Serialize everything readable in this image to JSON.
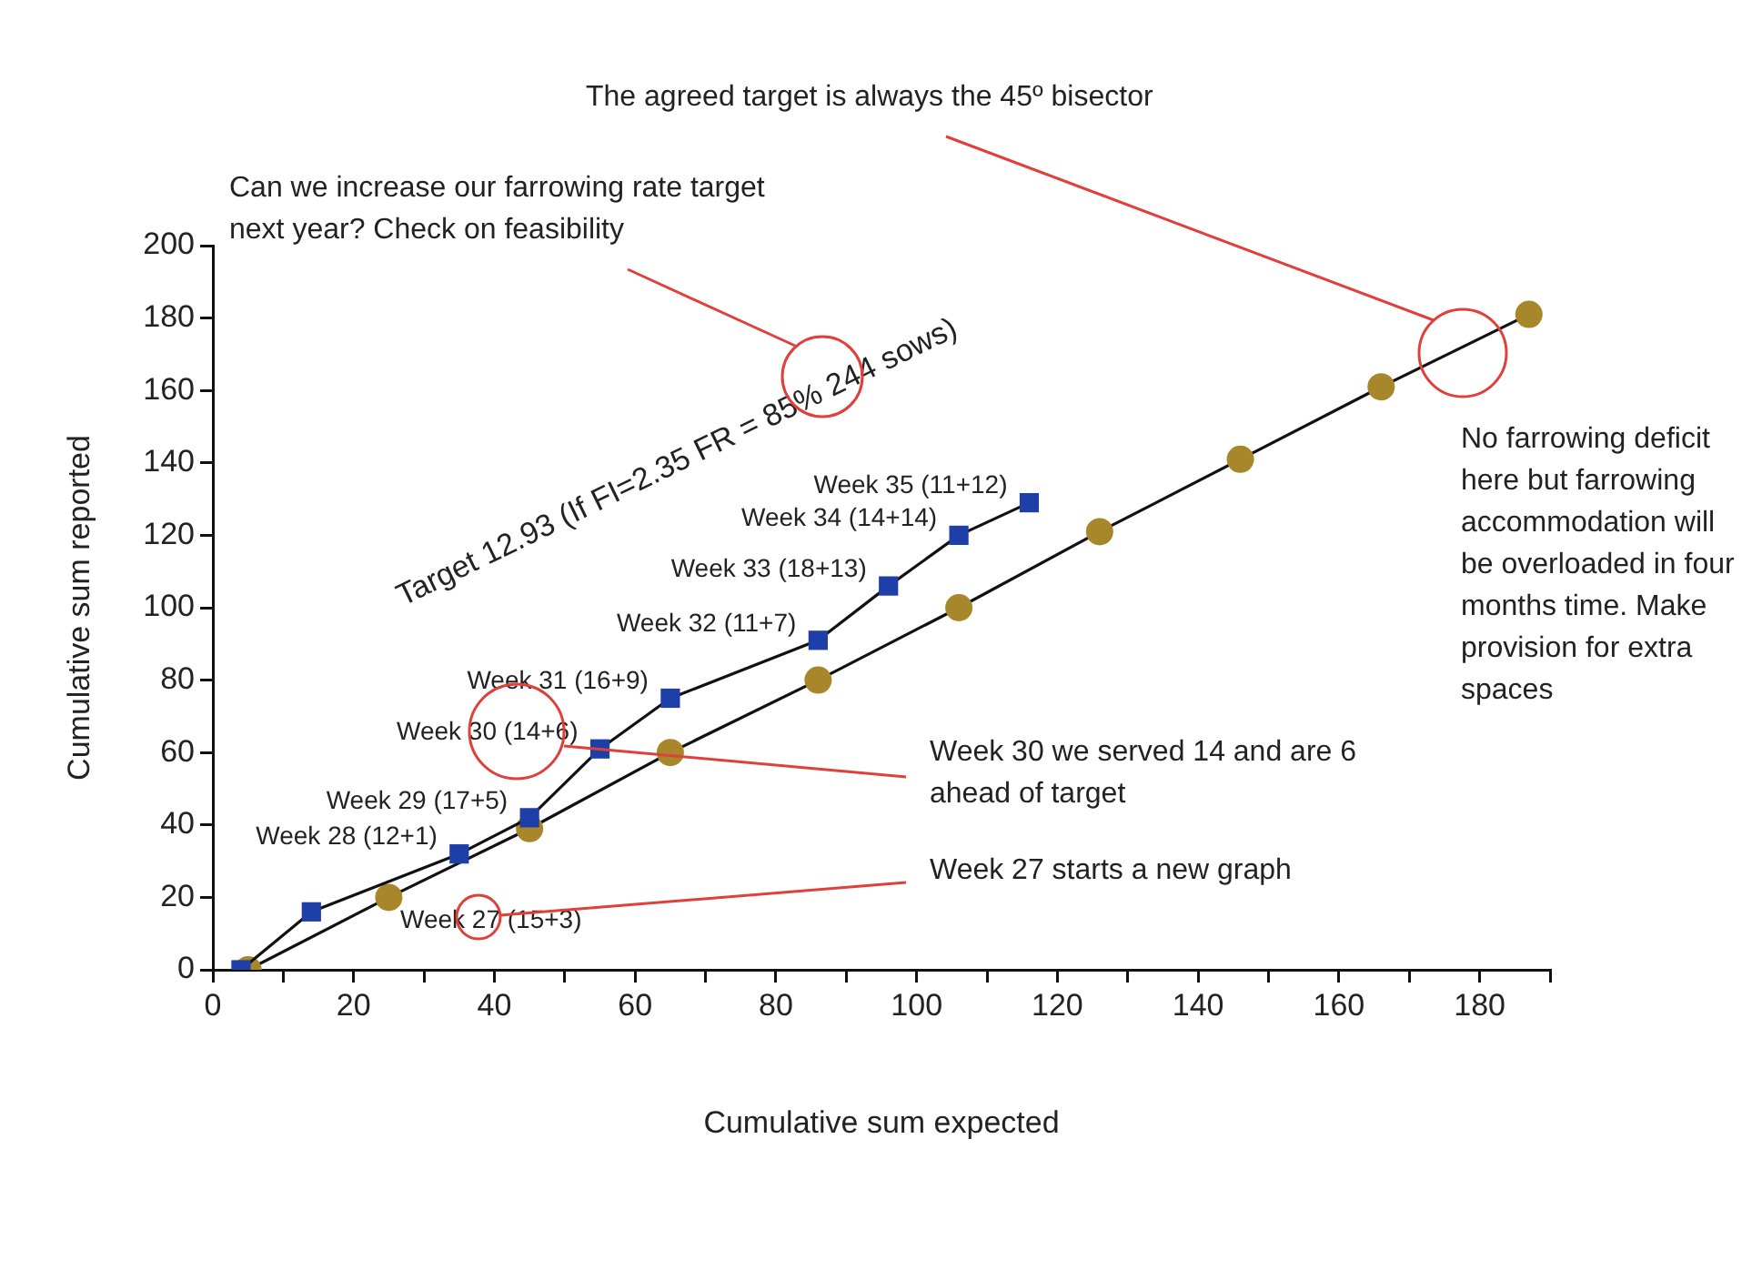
{
  "chart_data": {
    "type": "line",
    "xlabel": "Cumulative sum expected",
    "ylabel": "Cumulative sum reported",
    "xlim": [
      0,
      190
    ],
    "xticks": [
      0,
      {
        "value": 10,
        "label": null
      },
      20,
      {
        "value": 30,
        "label": null
      },
      40,
      {
        "value": 50,
        "label": null
      },
      60,
      {
        "value": 70,
        "label": null
      },
      80,
      {
        "value": 90,
        "label": null
      },
      100,
      {
        "value": 110,
        "label": null
      },
      120,
      {
        "value": 130,
        "label": null
      },
      140,
      {
        "value": 150,
        "label": null
      },
      160,
      {
        "value": 170,
        "label": null
      },
      180,
      {
        "value": 190,
        "label": null
      }
    ],
    "ylim": [
      0,
      200
    ],
    "yticks": [
      0,
      20,
      40,
      60,
      80,
      100,
      120,
      140,
      160,
      180,
      200
    ],
    "grid": false,
    "legend": false,
    "line_style": "solid",
    "series": [
      {
        "color": "#1f3fa8",
        "marker": "square",
        "x": [
          4,
          14,
          35,
          45,
          55,
          65,
          86,
          96,
          106,
          116
        ],
        "values": [
          0,
          16,
          32,
          42,
          61,
          75,
          91,
          106,
          120,
          129
        ]
      },
      {
        "color": "#a8862a",
        "marker": "circle",
        "x": [
          5,
          25,
          45,
          65,
          86,
          106,
          126,
          146,
          166,
          187
        ],
        "values": [
          0,
          20,
          39,
          60,
          80,
          100,
          121,
          141,
          161,
          181
        ]
      }
    ],
    "annotations": [
      "The agreed target is always the 45º bisector",
      "Can we increase our farrowing rate target next year? Check on feasibility",
      "Target 12.93 (If FI=2.35 FR = 85% 244 sows)",
      "Week 30 we served 14 and are 6 ahead of target",
      "Week 27 starts a new graph",
      "No farrowing deficit here but farrowing accommodation will be overloaded in four months time. Make provision for extra spaces",
      "Week 27 (15+3)",
      {
        "text": "Week 28 (12+1)",
        "x": 35,
        "y": 32
      },
      {
        "text": "Week 29 (17+5)",
        "x": 45,
        "y": 42
      },
      {
        "text": "Week 30 (14+6)",
        "x": 55,
        "y": 61
      },
      {
        "text": "Week 31 (16+9)",
        "x": 65,
        "y": 75
      },
      {
        "text": "Week 32 (11+7)",
        "x": 86,
        "y": 91
      },
      {
        "text": "Week 33 (18+13)",
        "x": 96,
        "y": 106
      },
      {
        "text": "Week 34 (14+14)",
        "x": 106,
        "y": 120
      },
      {
        "text": "Week 35 (11+12)",
        "x": 116,
        "y": 129
      }
    ]
  }
}
